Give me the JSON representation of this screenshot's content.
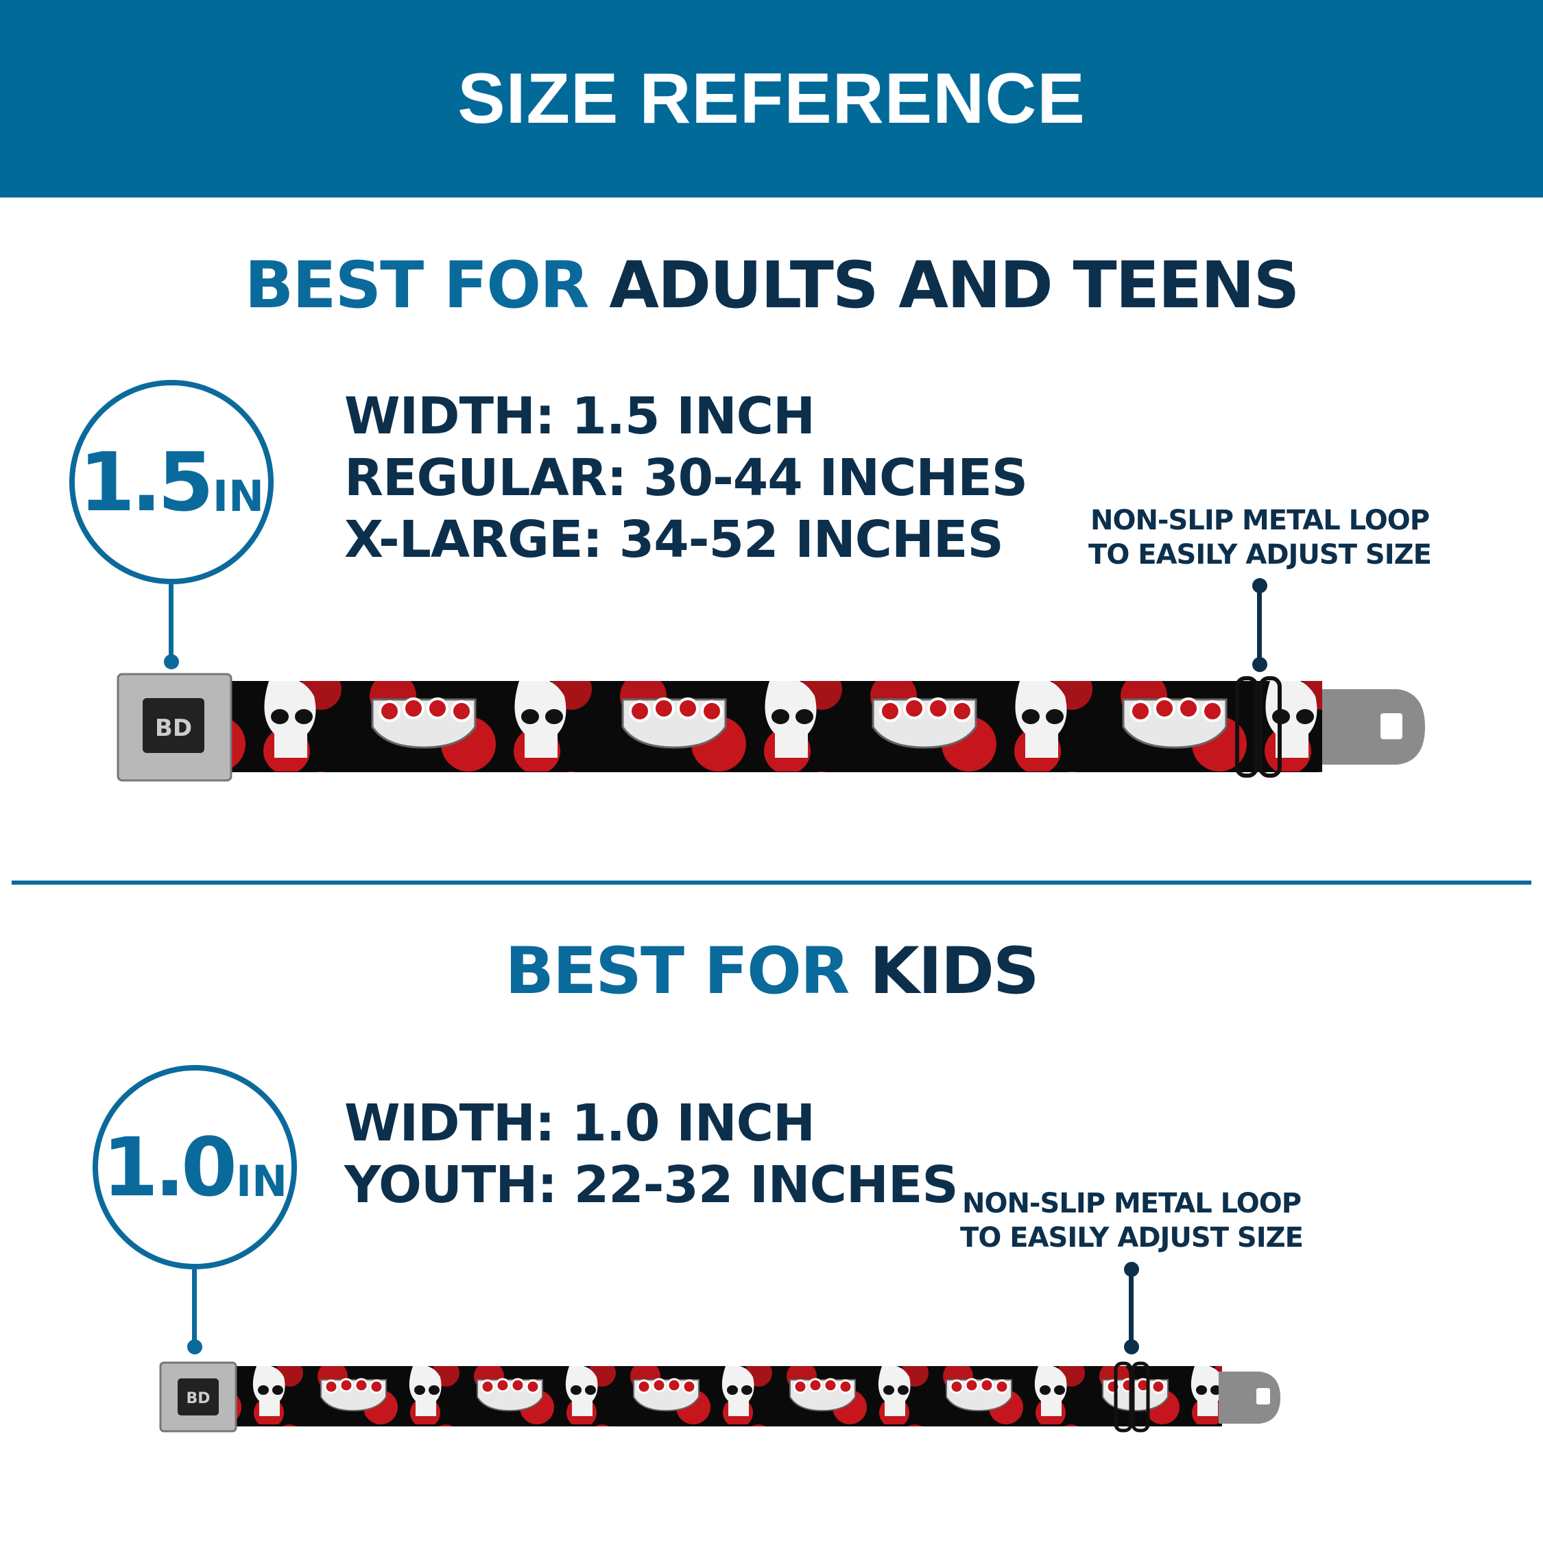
{
  "header": {
    "title": "SIZE REFERENCE"
  },
  "colors": {
    "header_bg": "#016a99",
    "accent_blue": "#0b6a9c",
    "navy": "#0c2f4c",
    "strap_red": "#c4161c",
    "strap_black": "#0a0a0a"
  },
  "adults": {
    "title_prefix": "BEST FOR",
    "title_main": "ADULTS AND TEENS",
    "badge_number": "1.5",
    "badge_unit": "IN",
    "specs": [
      "WIDTH: 1.5 INCH",
      "REGULAR: 30-44 INCHES",
      "X-LARGE: 34-52 INCHES"
    ],
    "note": [
      "NON-SLIP METAL LOOP",
      "TO EASILY ADJUST SIZE"
    ],
    "buckle_logo": "BD"
  },
  "kids": {
    "title_prefix": "BEST FOR",
    "title_main": "KIDS",
    "badge_number": "1.0",
    "badge_unit": "IN",
    "specs": [
      "WIDTH: 1.0 INCH",
      "YOUTH: 22-32 INCHES"
    ],
    "note": [
      "NON-SLIP METAL LOOP",
      "TO EASILY ADJUST SIZE"
    ],
    "buckle_logo": "BD"
  }
}
